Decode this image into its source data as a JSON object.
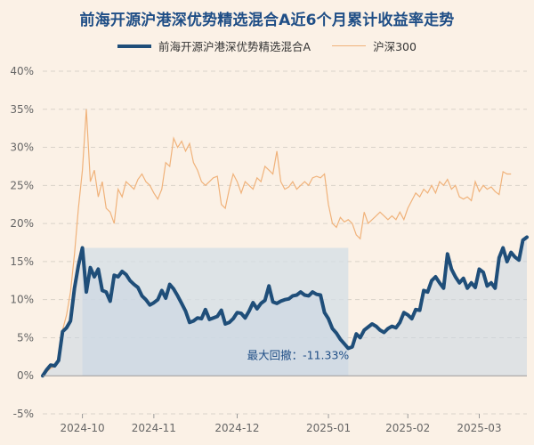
{
  "chart_data": {
    "type": "line",
    "title": "前海开源沪港深优势精选混合A近6个月累计收益率走势",
    "legend_position": "top",
    "grid": true,
    "ylim": [
      -5,
      40
    ],
    "y_ticks": [
      "40%",
      "35%",
      "30%",
      "25%",
      "20%",
      "15%",
      "10%",
      "5%",
      "0%",
      "-5%"
    ],
    "x_ticks": [
      "2024-10",
      "2024-11",
      "2024-12",
      "2025-01",
      "2025-02",
      "2025-03"
    ],
    "annotation": "最大回撤：-11.33%",
    "series": [
      {
        "name": "前海开源沪港深优势精选混合A",
        "color": "#1f4e79",
        "values": [
          0.0,
          0.8,
          1.4,
          1.3,
          2.0,
          5.8,
          6.3,
          7.2,
          11.5,
          14.5,
          16.8,
          11.0,
          14.2,
          13.0,
          14.0,
          11.2,
          11.0,
          9.8,
          13.2,
          13.0,
          13.7,
          13.3,
          12.5,
          12.0,
          11.6,
          10.5,
          10.0,
          9.3,
          9.6,
          10.0,
          11.2,
          10.2,
          12.0,
          11.4,
          10.5,
          9.5,
          8.5,
          7.0,
          7.2,
          7.6,
          7.5,
          8.7,
          7.4,
          7.6,
          7.8,
          8.6,
          6.8,
          7.0,
          7.5,
          8.3,
          8.2,
          7.6,
          8.5,
          9.6,
          8.8,
          9.5,
          9.9,
          11.8,
          9.7,
          9.5,
          9.8,
          10.0,
          10.1,
          10.5,
          10.6,
          11.0,
          10.6,
          10.5,
          11.0,
          10.7,
          10.6,
          8.3,
          7.5,
          6.2,
          5.6,
          4.8,
          4.2,
          3.6,
          3.8,
          5.5,
          5.0,
          6.0,
          6.4,
          6.8,
          6.5,
          6.0,
          5.7,
          6.2,
          6.5,
          6.3,
          7.0,
          8.3,
          8.0,
          7.5,
          8.7,
          8.6,
          11.2,
          11.0,
          12.5,
          13.0,
          12.2,
          11.5,
          16.0,
          14.0,
          13.0,
          12.2,
          12.8,
          11.5,
          12.2,
          11.6,
          14.0,
          13.6,
          11.8,
          12.2,
          11.5,
          15.5,
          16.8,
          15.0,
          16.2,
          15.6,
          15.2,
          17.8,
          18.2
        ]
      },
      {
        "name": "沪深300",
        "color": "#f0b27a",
        "values": [
          0.0,
          0.5,
          1.0,
          1.2,
          2.5,
          6.0,
          8.0,
          11.0,
          16.0,
          22.0,
          27.0,
          35.0,
          25.5,
          27.0,
          23.5,
          25.5,
          22.0,
          21.5,
          20.0,
          24.5,
          23.5,
          25.5,
          25.0,
          24.5,
          25.8,
          26.5,
          25.5,
          25.0,
          24.0,
          23.2,
          24.5,
          28.0,
          27.5,
          31.2,
          30.0,
          30.8,
          29.5,
          30.5,
          28.0,
          27.0,
          25.5,
          25.0,
          25.5,
          26.0,
          26.2,
          22.5,
          22.0,
          24.5,
          26.5,
          25.5,
          24.0,
          25.5,
          25.0,
          24.5,
          26.0,
          25.5,
          27.5,
          27.0,
          26.5,
          29.5,
          25.5,
          24.5,
          24.8,
          25.5,
          24.5,
          25.0,
          25.5,
          25.0,
          26.0,
          26.2,
          26.0,
          26.5,
          22.5,
          20.0,
          19.5,
          20.8,
          20.2,
          20.5,
          20.0,
          18.5,
          18.0,
          21.5,
          20.0,
          20.5,
          21.0,
          21.5,
          21.0,
          20.5,
          21.0,
          20.5,
          21.5,
          20.5,
          22.0,
          23.0,
          24.0,
          23.5,
          24.5,
          24.0,
          25.0,
          24.0,
          25.5,
          25.0,
          25.8,
          24.5,
          25.0,
          23.5,
          23.2,
          23.5,
          23.0,
          25.5,
          24.2,
          25.0,
          24.5,
          24.8,
          24.2,
          23.8,
          26.8,
          26.5,
          26.5
        ]
      }
    ]
  }
}
